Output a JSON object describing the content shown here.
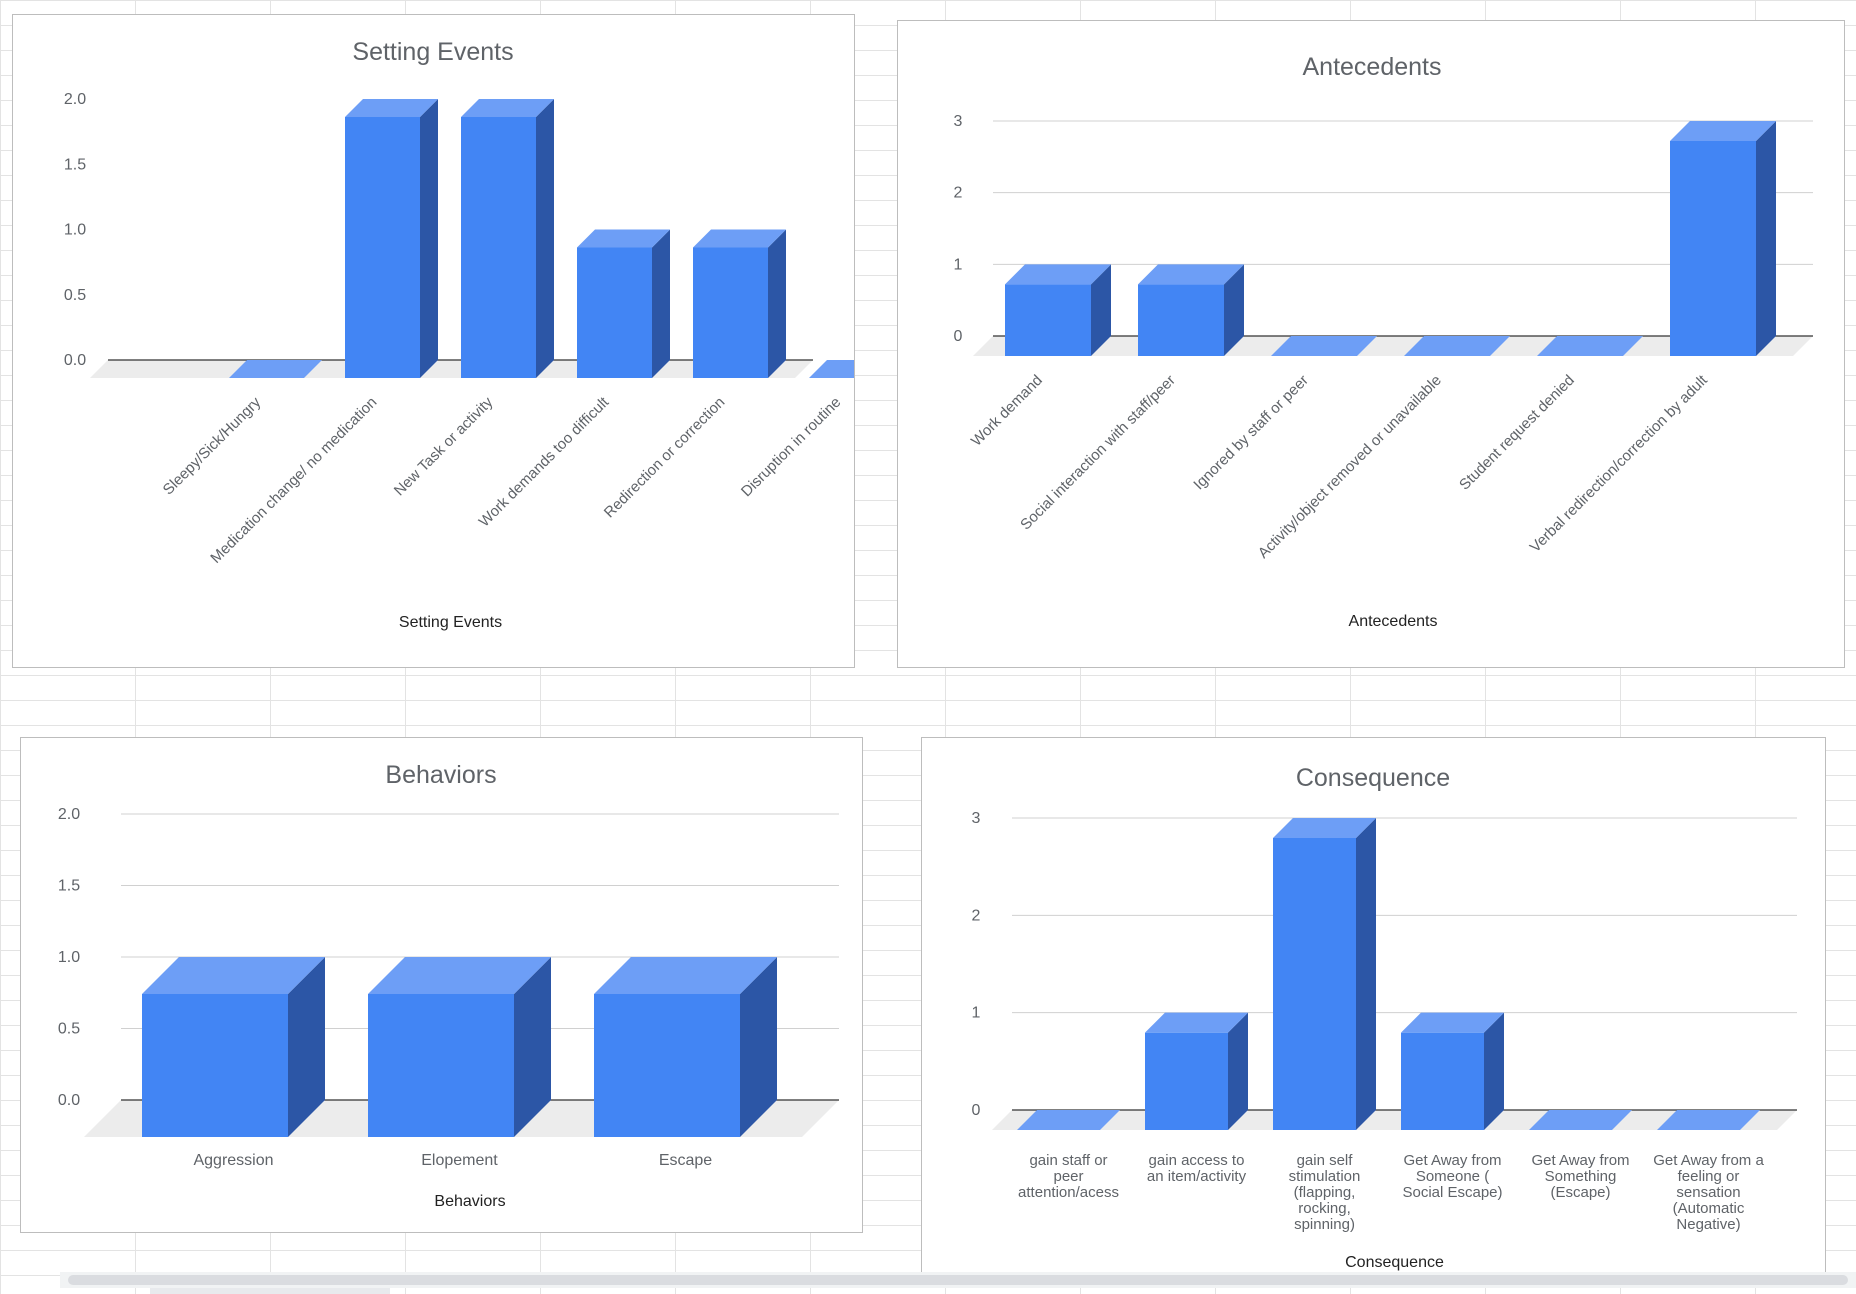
{
  "colors": {
    "bar_front": "#4285f4",
    "bar_top": "#6d9ef6",
    "bar_side": "#2c56a6",
    "floor": "#ececec",
    "gridline": "#d0d0d0",
    "baseline": "#333333",
    "title": "#5f6368",
    "tick_label": "#5f6368",
    "axis_title": "#222222"
  },
  "chart_data": [
    {
      "type": "bar",
      "title": "Setting Events",
      "xlabel": "Setting Events",
      "ylabel": "",
      "categories": [
        "Sleepy/Sick/Hungry",
        "Medication change/ no medication",
        "New Task or activity",
        "Work demands too difficult",
        "Redirection or correction",
        "Disruption in routine"
      ],
      "values": [
        0,
        2,
        2,
        1,
        1,
        0
      ],
      "y_ticks": [
        "0.0",
        "0.5",
        "1.0",
        "1.5",
        "2.0"
      ],
      "ylim": [
        0,
        2
      ],
      "grid": false,
      "label_rotation": -45,
      "legend": "none"
    },
    {
      "type": "bar",
      "title": "Antecedents",
      "xlabel": "Antecedents",
      "ylabel": "",
      "categories": [
        "Work demand",
        "Social interaction with staff/peer",
        "Ignored by staff or peer",
        "Activity/object removed or unavailable",
        "Student request denied",
        "Verbal redirection/correction by adult"
      ],
      "values": [
        1,
        1,
        0,
        0,
        0,
        3
      ],
      "y_ticks": [
        "0",
        "1",
        "2",
        "3"
      ],
      "ylim": [
        0,
        3
      ],
      "grid": true,
      "label_rotation": -45,
      "legend": "none"
    },
    {
      "type": "bar",
      "title": "Behaviors",
      "xlabel": "Behaviors",
      "ylabel": "",
      "categories": [
        "Aggression",
        "Elopement",
        "Escape"
      ],
      "values": [
        1,
        1,
        1
      ],
      "y_ticks": [
        "0.0",
        "0.5",
        "1.0",
        "1.5",
        "2.0"
      ],
      "ylim": [
        0,
        2
      ],
      "grid": true,
      "label_rotation": 0,
      "legend": "none"
    },
    {
      "type": "bar",
      "title": "Consequence",
      "xlabel": "Consequence",
      "ylabel": "",
      "categories": [
        [
          "gain staff or",
          "peer",
          "attention/acess"
        ],
        [
          "gain access to",
          "an item/activity"
        ],
        [
          "gain self",
          "stimulation",
          "(flapping,",
          "rocking,",
          "spinning)"
        ],
        [
          "Get Away from",
          "Someone (",
          "Social Escape)"
        ],
        [
          "Get Away from",
          "Something",
          "(Escape)"
        ],
        [
          "Get Away from a",
          "feeling or",
          "sensation",
          "(Automatic",
          "Negative)"
        ]
      ],
      "values": [
        0,
        1,
        3,
        1,
        0,
        0
      ],
      "y_ticks": [
        "0",
        "1",
        "2",
        "3"
      ],
      "ylim": [
        0,
        3
      ],
      "grid": true,
      "label_rotation": 0,
      "legend": "none"
    }
  ]
}
